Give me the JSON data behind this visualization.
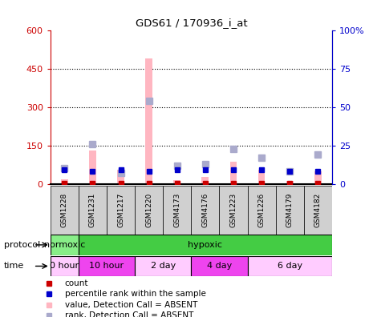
{
  "title": "GDS61 / 170936_i_at",
  "samples": [
    "GSM1228",
    "GSM1231",
    "GSM1217",
    "GSM1220",
    "GSM4173",
    "GSM4176",
    "GSM1223",
    "GSM1226",
    "GSM4179",
    "GSM4182"
  ],
  "bar_values_absent": [
    18,
    130,
    55,
    490,
    15,
    28,
    85,
    55,
    12,
    50
  ],
  "rank_values_absent_pct": [
    10,
    26,
    7,
    54,
    12,
    13,
    23,
    17,
    8,
    19
  ],
  "count_values": [
    3,
    3,
    3,
    3,
    3,
    3,
    3,
    3,
    3,
    3
  ],
  "rank_values_pct": [
    9,
    8,
    9,
    8,
    9,
    9,
    9,
    9,
    8,
    8
  ],
  "ylim_left": [
    0,
    600
  ],
  "ylim_right": [
    0,
    100
  ],
  "yticks_left": [
    0,
    150,
    300,
    450,
    600
  ],
  "yticks_right": [
    0,
    25,
    50,
    75,
    100
  ],
  "bar_color_absent": "#ffb6c1",
  "rank_color_absent": "#aaaacc",
  "count_color": "#cc0000",
  "rank_color": "#0000cc",
  "left_axis_color": "#cc0000",
  "right_axis_color": "#0000cc",
  "normoxic_color": "#88ee88",
  "hypoxic_color": "#44cc44",
  "time_colors": [
    "#ffccff",
    "#ee44ee",
    "#ffccff",
    "#ee44ee",
    "#ffccff"
  ],
  "time_labels": [
    "0 hour",
    "10 hour",
    "2 day",
    "4 day",
    "6 day"
  ],
  "legend_items": [
    {
      "label": "count",
      "color": "#cc0000"
    },
    {
      "label": "percentile rank within the sample",
      "color": "#0000cc"
    },
    {
      "label": "value, Detection Call = ABSENT",
      "color": "#ffb6c1"
    },
    {
      "label": "rank, Detection Call = ABSENT",
      "color": "#aaaacc"
    }
  ]
}
